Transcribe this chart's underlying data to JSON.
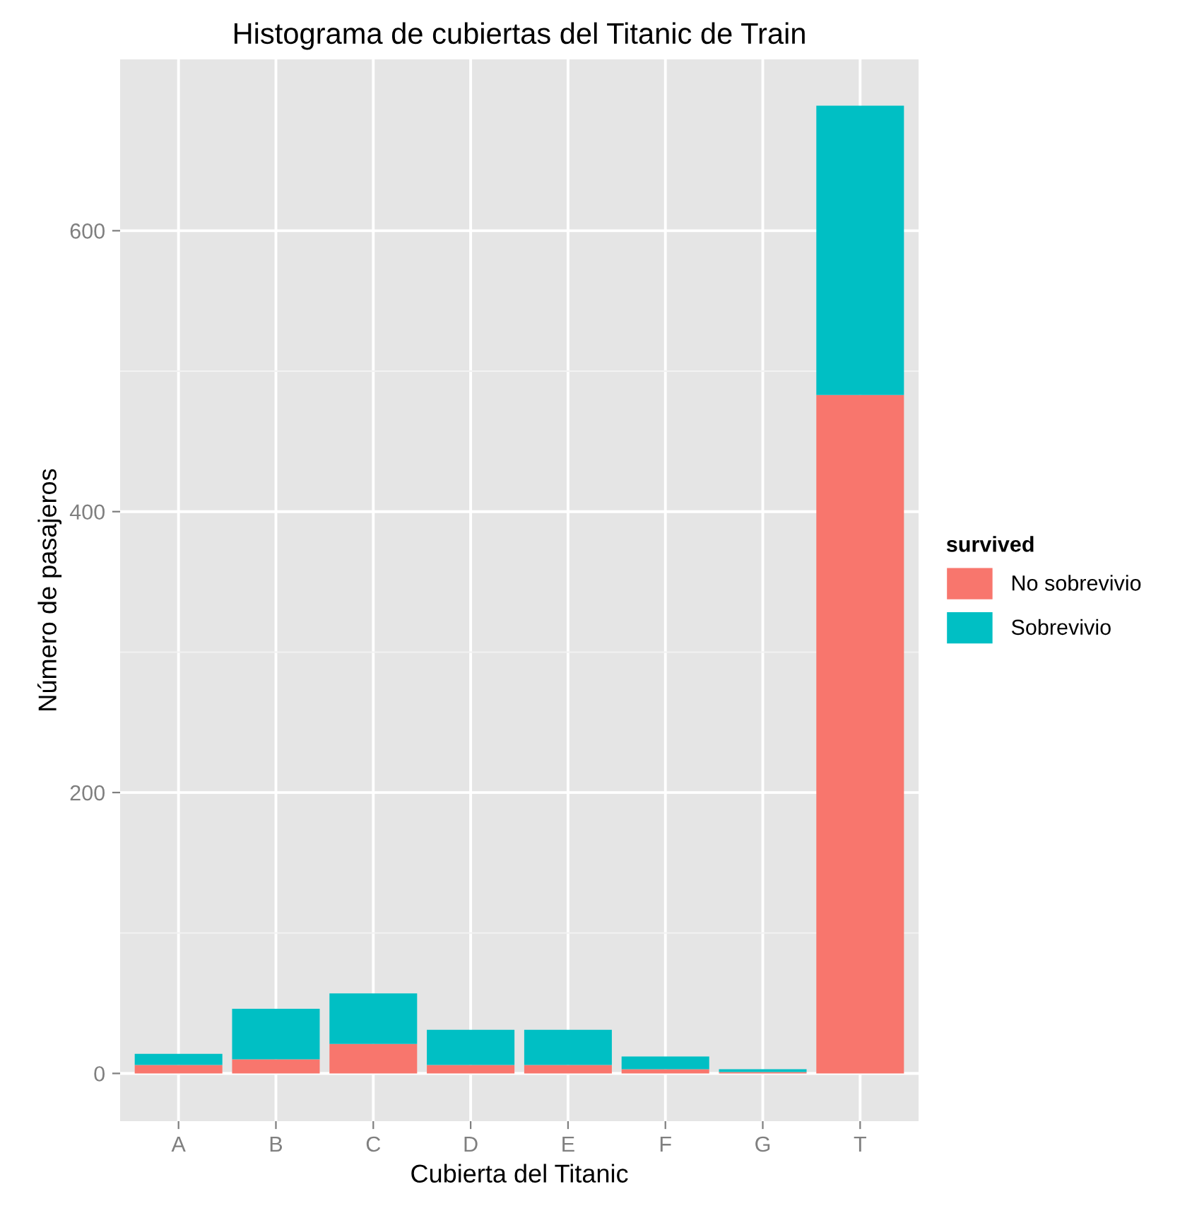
{
  "chart_data": {
    "type": "bar",
    "title": "Histograma de cubiertas del Titanic de Train",
    "xlabel": "Cubierta del Titanic",
    "ylabel": "Número de pasajeros",
    "legend_title": "survived",
    "categories": [
      "A",
      "B",
      "C",
      "D",
      "E",
      "F",
      "G",
      "T"
    ],
    "series": [
      {
        "name": "No sobrevivio",
        "color": "#f8766d",
        "values": [
          6,
          10,
          21,
          6,
          6,
          3,
          1,
          483
        ]
      },
      {
        "name": "Sobrevivio",
        "color": "#00bfc4",
        "values": [
          8,
          36,
          36,
          25,
          25,
          9,
          2,
          206
        ]
      }
    ],
    "stacked": true,
    "ylim": [
      -34,
      722
    ],
    "yticks": [
      0,
      {
        "value": 100,
        "label": null
      },
      200,
      {
        "value": 300,
        "label": null
      },
      400,
      {
        "value": 500,
        "label": null
      },
      600
    ],
    "grid": true,
    "legend": "right"
  }
}
